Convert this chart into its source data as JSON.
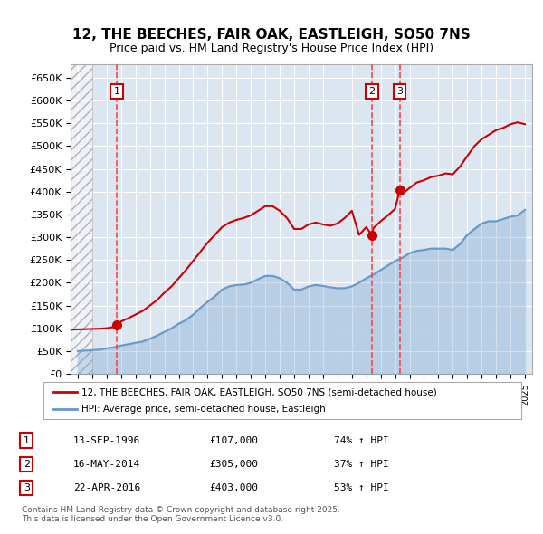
{
  "title_line1": "12, THE BEECHES, FAIR OAK, EASTLEIGH, SO50 7NS",
  "title_line2": "Price paid vs. HM Land Registry's House Price Index (HPI)",
  "ylabel": "",
  "ylim": [
    0,
    680000
  ],
  "yticks": [
    0,
    50000,
    100000,
    150000,
    200000,
    250000,
    300000,
    350000,
    400000,
    450000,
    500000,
    550000,
    600000,
    650000
  ],
  "ytick_labels": [
    "£0",
    "£50K",
    "£100K",
    "£150K",
    "£200K",
    "£250K",
    "£300K",
    "£350K",
    "£400K",
    "£450K",
    "£500K",
    "£550K",
    "£600K",
    "£650K"
  ],
  "xlim_start": 1993.5,
  "xlim_end": 2025.5,
  "background_color": "#ffffff",
  "plot_bg_color": "#dce6f1",
  "grid_color": "#ffffff",
  "hatch_color": "#c0c0c0",
  "sale_dates_year": [
    1996.71,
    2014.37,
    2016.31
  ],
  "sale_prices": [
    107000,
    305000,
    403000
  ],
  "sale_labels": [
    "1",
    "2",
    "3"
  ],
  "sale_date_strings": [
    "13-SEP-1996",
    "16-MAY-2014",
    "22-APR-2016"
  ],
  "sale_price_strings": [
    "£107,000",
    "£305,000",
    "£403,000"
  ],
  "sale_hpi_strings": [
    "74% ↑ HPI",
    "37% ↑ HPI",
    "53% ↑ HPI"
  ],
  "red_line_color": "#cc0000",
  "blue_line_color": "#6699cc",
  "dot_color": "#cc0000",
  "legend_label_red": "12, THE BEECHES, FAIR OAK, EASTLEIGH, SO50 7NS (semi-detached house)",
  "legend_label_blue": "HPI: Average price, semi-detached house, Eastleigh",
  "footer_text": "Contains HM Land Registry data © Crown copyright and database right 2025.\nThis data is licensed under the Open Government Licence v3.0.",
  "hpi_years": [
    1994,
    1994.5,
    1995,
    1995.5,
    1996,
    1996.5,
    1997,
    1997.5,
    1998,
    1998.5,
    1999,
    1999.5,
    2000,
    2000.5,
    2001,
    2001.5,
    2002,
    2002.5,
    2003,
    2003.5,
    2004,
    2004.5,
    2005,
    2005.5,
    2006,
    2006.5,
    2007,
    2007.5,
    2008,
    2008.5,
    2009,
    2009.5,
    2010,
    2010.5,
    2011,
    2011.5,
    2012,
    2012.5,
    2013,
    2013.5,
    2014,
    2014.5,
    2015,
    2015.5,
    2016,
    2016.5,
    2017,
    2017.5,
    2018,
    2018.5,
    2019,
    2019.5,
    2020,
    2020.5,
    2021,
    2021.5,
    2022,
    2022.5,
    2023,
    2023.5,
    2024,
    2024.5,
    2025
  ],
  "hpi_values": [
    50000,
    51000,
    52000,
    53000,
    56000,
    58000,
    62000,
    65000,
    68000,
    71000,
    77000,
    84000,
    92000,
    100000,
    110000,
    118000,
    130000,
    145000,
    158000,
    170000,
    185000,
    192000,
    195000,
    196000,
    200000,
    208000,
    215000,
    215000,
    210000,
    200000,
    185000,
    185000,
    192000,
    195000,
    193000,
    190000,
    188000,
    188000,
    192000,
    200000,
    210000,
    218000,
    228000,
    238000,
    248000,
    255000,
    265000,
    270000,
    272000,
    275000,
    275000,
    275000,
    272000,
    285000,
    305000,
    318000,
    330000,
    335000,
    335000,
    340000,
    345000,
    348000,
    360000
  ],
  "property_years": [
    1993.6,
    1994,
    1994.5,
    1995,
    1995.5,
    1996,
    1996.5,
    1996.71,
    1997,
    1997.5,
    1998,
    1998.5,
    1999,
    1999.5,
    2000,
    2000.5,
    2001,
    2001.5,
    2002,
    2002.5,
    2003,
    2003.5,
    2004,
    2004.5,
    2005,
    2005.5,
    2006,
    2006.5,
    2007,
    2007.5,
    2008,
    2008.5,
    2009,
    2009.5,
    2010,
    2010.5,
    2011,
    2011.5,
    2012,
    2012.5,
    2013,
    2013.5,
    2014,
    2014.37,
    2014.5,
    2015,
    2015.5,
    2016,
    2016.31,
    2016.5,
    2017,
    2017.5,
    2018,
    2018.5,
    2019,
    2019.5,
    2020,
    2020.5,
    2021,
    2021.5,
    2022,
    2022.5,
    2023,
    2023.5,
    2024,
    2024.5,
    2025
  ],
  "property_values": [
    97000,
    97500,
    98000,
    98500,
    99000,
    100000,
    103000,
    107000,
    115000,
    122000,
    130000,
    138000,
    150000,
    162000,
    178000,
    192000,
    210000,
    228000,
    248000,
    268000,
    288000,
    305000,
    322000,
    332000,
    338000,
    342000,
    348000,
    358000,
    368000,
    368000,
    358000,
    342000,
    318000,
    318000,
    328000,
    332000,
    328000,
    325000,
    330000,
    342000,
    358000,
    305000,
    322000,
    305000,
    320000,
    335000,
    348000,
    362000,
    403000,
    395000,
    408000,
    420000,
    425000,
    432000,
    435000,
    440000,
    438000,
    455000,
    478000,
    500000,
    515000,
    525000,
    535000,
    540000,
    548000,
    552000,
    548000
  ]
}
